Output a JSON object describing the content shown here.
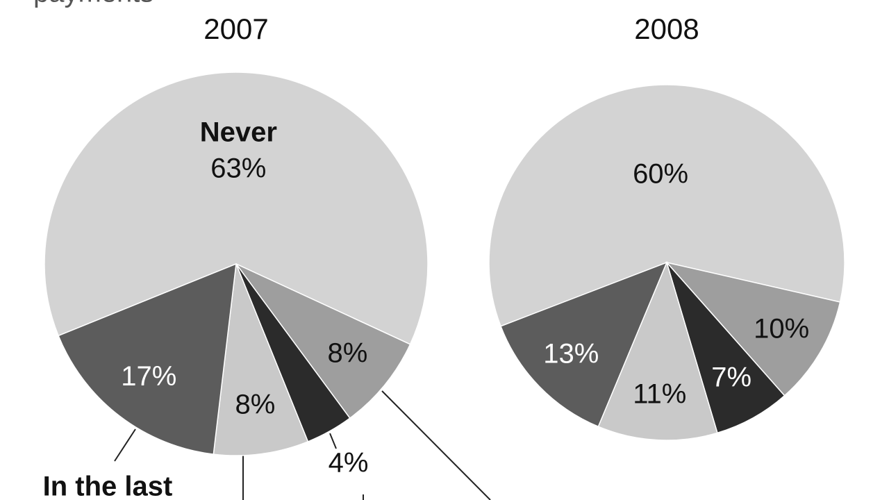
{
  "header": {
    "text": "payments"
  },
  "chart_data": [
    {
      "type": "pie",
      "title": "2007",
      "categories": [
        "Never",
        null,
        null,
        null,
        "In the last"
      ],
      "values": [
        63,
        8,
        4,
        8,
        17
      ],
      "value_labels": [
        "63%",
        "8%",
        "4%",
        "8%",
        "17%"
      ],
      "colors": [
        "#d3d3d3",
        "#9e9e9e",
        "#2b2b2b",
        "#c9c9c9",
        "#5c5c5c"
      ]
    },
    {
      "type": "pie",
      "title": "2008",
      "categories": [
        null,
        null,
        null,
        null,
        null
      ],
      "values": [
        60,
        10,
        7,
        11,
        13
      ],
      "value_labels": [
        "60%",
        "10%",
        "7%",
        "11%",
        "13%"
      ],
      "colors": [
        "#d3d3d3",
        "#9e9e9e",
        "#2b2b2b",
        "#c9c9c9",
        "#5c5c5c"
      ]
    }
  ]
}
